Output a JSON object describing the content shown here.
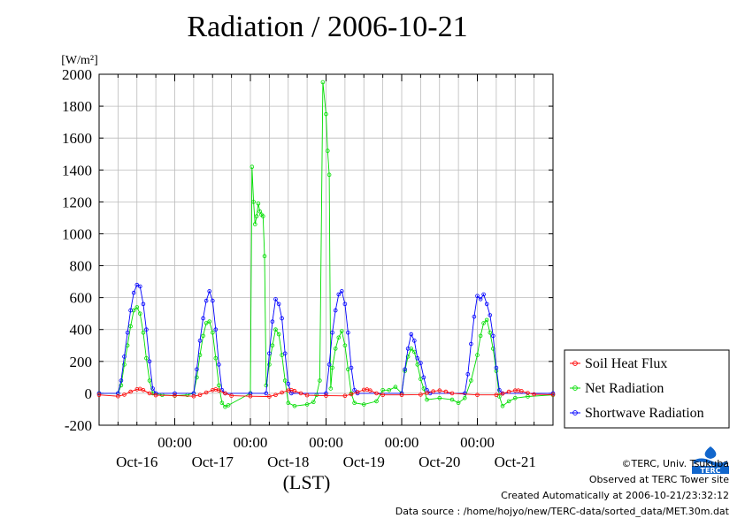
{
  "title": "Radiation / 2006-10-21",
  "unit_label": "[W/m²]",
  "xaxis_unit": "(LST)",
  "credits": {
    "copyright": "©TERC, Univ. Tsukuba",
    "observed": "Observed at TERC Tower site",
    "created": "Created Automatically at 2006-10-21/23:32:12",
    "source": "Data source : /home/hojyo/new/TERC-data/sorted_data/MET.30m.dat"
  },
  "logo_text": "TERC",
  "chart_data": {
    "type": "line",
    "title": "Radiation / 2006-10-21",
    "ylabel": "[W/m²]",
    "xlabel": "(LST)",
    "ylim": [
      -200,
      2000
    ],
    "yticks": [
      -200,
      0,
      200,
      400,
      600,
      800,
      1000,
      1200,
      1400,
      1600,
      1800,
      2000
    ],
    "xlim_hours": [
      0,
      144
    ],
    "day_labels": [
      {
        "day": 0.5,
        "label": "Oct-16"
      },
      {
        "day": 1.5,
        "label": "Oct-17"
      },
      {
        "day": 2.5,
        "label": "Oct-18"
      },
      {
        "day": 3.5,
        "label": "Oct-19"
      },
      {
        "day": 4.5,
        "label": "Oct-20"
      },
      {
        "day": 5.5,
        "label": "Oct-21"
      }
    ],
    "time_tick_label": "00:00",
    "grid": true,
    "legend_position": "right",
    "series": [
      {
        "name": "Soil Heat Flux",
        "color": "#ff0000",
        "marker": "circle",
        "points": [
          [
            0,
            -10
          ],
          [
            6,
            -18
          ],
          [
            8,
            -8
          ],
          [
            10,
            10
          ],
          [
            12,
            25
          ],
          [
            13,
            28
          ],
          [
            14,
            20
          ],
          [
            16,
            0
          ],
          [
            18,
            -12
          ],
          [
            24,
            -14
          ],
          [
            30,
            -18
          ],
          [
            32,
            -10
          ],
          [
            34,
            5
          ],
          [
            36,
            20
          ],
          [
            37,
            25
          ],
          [
            38,
            18
          ],
          [
            40,
            0
          ],
          [
            42,
            -15
          ],
          [
            48,
            -18
          ],
          [
            54,
            -20
          ],
          [
            56,
            -10
          ],
          [
            58,
            5
          ],
          [
            60,
            18
          ],
          [
            61,
            20
          ],
          [
            62,
            15
          ],
          [
            64,
            0
          ],
          [
            66,
            -12
          ],
          [
            72,
            -15
          ],
          [
            78,
            -16
          ],
          [
            80,
            -6
          ],
          [
            82,
            8
          ],
          [
            84,
            22
          ],
          [
            85,
            24
          ],
          [
            86,
            18
          ],
          [
            88,
            0
          ],
          [
            90,
            -10
          ],
          [
            96,
            -10
          ],
          [
            102,
            -8
          ],
          [
            104,
            2
          ],
          [
            106,
            12
          ],
          [
            108,
            18
          ],
          [
            110,
            10
          ],
          [
            112,
            0
          ],
          [
            120,
            -10
          ],
          [
            126,
            -10
          ],
          [
            128,
            -2
          ],
          [
            130,
            10
          ],
          [
            132,
            18
          ],
          [
            133,
            18
          ],
          [
            134,
            14
          ],
          [
            136,
            2
          ],
          [
            138,
            -6
          ],
          [
            144,
            -8
          ]
        ]
      },
      {
        "name": "Net Radiation",
        "color": "#00dd00",
        "marker": "circle",
        "points": [
          [
            0,
            0
          ],
          [
            6,
            0
          ],
          [
            7,
            50
          ],
          [
            8,
            180
          ],
          [
            9,
            300
          ],
          [
            10,
            420
          ],
          [
            11,
            520
          ],
          [
            12,
            540
          ],
          [
            13,
            500
          ],
          [
            14,
            380
          ],
          [
            15,
            220
          ],
          [
            16,
            80
          ],
          [
            17,
            0
          ],
          [
            20,
            -10
          ],
          [
            24,
            -15
          ],
          [
            28,
            -10
          ],
          [
            30,
            0
          ],
          [
            31,
            100
          ],
          [
            32,
            240
          ],
          [
            33,
            360
          ],
          [
            34,
            440
          ],
          [
            35,
            450
          ],
          [
            36,
            380
          ],
          [
            37,
            220
          ],
          [
            38,
            50
          ],
          [
            39,
            -60
          ],
          [
            40,
            -85
          ],
          [
            41,
            -75
          ],
          [
            48,
            0
          ],
          [
            48.5,
            1420
          ],
          [
            49,
            1200
          ],
          [
            49.5,
            1060
          ],
          [
            50,
            1110
          ],
          [
            50.5,
            1190
          ],
          [
            51,
            1140
          ],
          [
            51.5,
            1120
          ],
          [
            52,
            1110
          ],
          [
            52.5,
            860
          ],
          [
            53,
            50
          ],
          [
            54,
            180
          ],
          [
            55,
            300
          ],
          [
            56,
            400
          ],
          [
            57,
            370
          ],
          [
            58,
            240
          ],
          [
            59,
            80
          ],
          [
            60,
            -60
          ],
          [
            62,
            -80
          ],
          [
            66,
            -70
          ],
          [
            68,
            -55
          ],
          [
            69,
            -10
          ],
          [
            70,
            80
          ],
          [
            71,
            1950
          ],
          [
            72,
            1750
          ],
          [
            72.5,
            1520
          ],
          [
            73,
            1370
          ],
          [
            73.5,
            30
          ],
          [
            74,
            160
          ],
          [
            75,
            280
          ],
          [
            76,
            350
          ],
          [
            77,
            390
          ],
          [
            78,
            300
          ],
          [
            79,
            150
          ],
          [
            80,
            0
          ],
          [
            81,
            -60
          ],
          [
            84,
            -70
          ],
          [
            88,
            -50
          ],
          [
            90,
            20
          ],
          [
            92,
            20
          ],
          [
            94,
            40
          ],
          [
            96,
            0
          ],
          [
            97,
            140
          ],
          [
            98,
            230
          ],
          [
            99,
            280
          ],
          [
            100,
            260
          ],
          [
            101,
            180
          ],
          [
            102,
            90
          ],
          [
            103,
            30
          ],
          [
            104,
            -40
          ],
          [
            108,
            -30
          ],
          [
            112,
            -40
          ],
          [
            114,
            -60
          ],
          [
            116,
            -30
          ],
          [
            118,
            80
          ],
          [
            120,
            240
          ],
          [
            121,
            360
          ],
          [
            122,
            440
          ],
          [
            123,
            460
          ],
          [
            124,
            380
          ],
          [
            125,
            280
          ],
          [
            126,
            140
          ],
          [
            127,
            -20
          ],
          [
            128,
            -80
          ],
          [
            130,
            -50
          ],
          [
            132,
            -30
          ],
          [
            136,
            -20
          ],
          [
            144,
            -10
          ]
        ]
      },
      {
        "name": "Shortwave Radiation",
        "color": "#0000ff",
        "marker": "circle",
        "points": [
          [
            0,
            0
          ],
          [
            6,
            0
          ],
          [
            7,
            80
          ],
          [
            8,
            230
          ],
          [
            9,
            380
          ],
          [
            10,
            520
          ],
          [
            11,
            630
          ],
          [
            12,
            680
          ],
          [
            13,
            670
          ],
          [
            14,
            560
          ],
          [
            15,
            400
          ],
          [
            16,
            200
          ],
          [
            17,
            30
          ],
          [
            18,
            0
          ],
          [
            24,
            0
          ],
          [
            30,
            0
          ],
          [
            31,
            150
          ],
          [
            32,
            330
          ],
          [
            33,
            470
          ],
          [
            34,
            580
          ],
          [
            35,
            640
          ],
          [
            36,
            580
          ],
          [
            37,
            400
          ],
          [
            38,
            180
          ],
          [
            39,
            20
          ],
          [
            40,
            0
          ],
          [
            48,
            0
          ],
          [
            53,
            0
          ],
          [
            54,
            250
          ],
          [
            55,
            450
          ],
          [
            56,
            590
          ],
          [
            57,
            560
          ],
          [
            58,
            470
          ],
          [
            59,
            250
          ],
          [
            60,
            60
          ],
          [
            61,
            0
          ],
          [
            72,
            0
          ],
          [
            73,
            180
          ],
          [
            74,
            380
          ],
          [
            75,
            520
          ],
          [
            76,
            620
          ],
          [
            77,
            640
          ],
          [
            78,
            560
          ],
          [
            79,
            380
          ],
          [
            80,
            160
          ],
          [
            81,
            20
          ],
          [
            82,
            0
          ],
          [
            96,
            0
          ],
          [
            97,
            150
          ],
          [
            98,
            280
          ],
          [
            99,
            370
          ],
          [
            100,
            330
          ],
          [
            101,
            220
          ],
          [
            102,
            190
          ],
          [
            103,
            100
          ],
          [
            104,
            20
          ],
          [
            105,
            0
          ],
          [
            116,
            0
          ],
          [
            117,
            120
          ],
          [
            118,
            310
          ],
          [
            119,
            480
          ],
          [
            120,
            610
          ],
          [
            121,
            590
          ],
          [
            122,
            620
          ],
          [
            123,
            560
          ],
          [
            124,
            490
          ],
          [
            125,
            360
          ],
          [
            126,
            160
          ],
          [
            127,
            20
          ],
          [
            128,
            0
          ],
          [
            144,
            0
          ]
        ]
      }
    ]
  }
}
